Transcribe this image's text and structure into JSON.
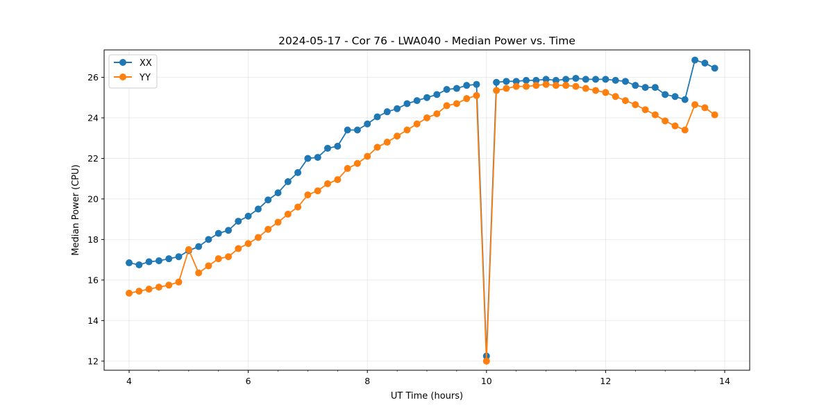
{
  "chart_data": {
    "type": "line",
    "title": "2024-05-17 - Cor 76 - LWA040 - Median Power vs. Time",
    "xlabel": "UT Time (hours)",
    "ylabel": "Median Power (CPU)",
    "xlim": [
      3.58,
      14.42
    ],
    "ylim": [
      11.55,
      27.35
    ],
    "xticks": [
      4,
      6,
      8,
      10,
      12,
      14
    ],
    "yticks": [
      12,
      14,
      16,
      18,
      20,
      22,
      24,
      26
    ],
    "grid": true,
    "legend_position": "top-left",
    "x": [
      4.0,
      4.167,
      4.333,
      4.5,
      4.667,
      4.833,
      5.0,
      5.167,
      5.333,
      5.5,
      5.667,
      5.833,
      6.0,
      6.167,
      6.333,
      6.5,
      6.667,
      6.833,
      7.0,
      7.167,
      7.333,
      7.5,
      7.667,
      7.833,
      8.0,
      8.167,
      8.333,
      8.5,
      8.667,
      8.833,
      9.0,
      9.167,
      9.333,
      9.5,
      9.667,
      9.833,
      10.0,
      10.167,
      10.333,
      10.5,
      10.667,
      10.833,
      11.0,
      11.167,
      11.333,
      11.5,
      11.667,
      11.833,
      12.0,
      12.167,
      12.333,
      12.5,
      12.667,
      12.833,
      13.0,
      13.167,
      13.333,
      13.5,
      13.667,
      13.833
    ],
    "series": [
      {
        "name": "XX",
        "color": "#1f77b4",
        "values": [
          16.85,
          16.75,
          16.9,
          16.95,
          17.05,
          17.15,
          17.45,
          17.65,
          18.0,
          18.3,
          18.45,
          18.9,
          19.15,
          19.5,
          19.95,
          20.3,
          20.85,
          21.3,
          22.0,
          22.05,
          22.5,
          22.6,
          23.4,
          23.4,
          23.7,
          24.05,
          24.3,
          24.45,
          24.7,
          24.85,
          25.0,
          25.15,
          25.4,
          25.45,
          25.6,
          25.65,
          12.25,
          25.75,
          25.8,
          25.8,
          25.85,
          25.85,
          25.9,
          25.85,
          25.9,
          25.95,
          25.9,
          25.9,
          25.9,
          25.85,
          25.8,
          25.6,
          25.5,
          25.5,
          25.15,
          25.05,
          24.9,
          26.85,
          26.7,
          26.45
        ]
      },
      {
        "name": "YY",
        "color": "#ff7f0e",
        "values": [
          15.35,
          15.45,
          15.55,
          15.65,
          15.75,
          15.9,
          17.5,
          16.35,
          16.7,
          17.05,
          17.15,
          17.55,
          17.8,
          18.1,
          18.5,
          18.85,
          19.25,
          19.6,
          20.2,
          20.4,
          20.75,
          20.95,
          21.5,
          21.75,
          22.1,
          22.55,
          22.8,
          23.1,
          23.4,
          23.7,
          24.0,
          24.2,
          24.6,
          24.7,
          24.95,
          25.1,
          12.0,
          25.35,
          25.45,
          25.55,
          25.55,
          25.6,
          25.65,
          25.6,
          25.6,
          25.55,
          25.45,
          25.35,
          25.25,
          25.05,
          24.85,
          24.65,
          24.4,
          24.15,
          23.85,
          23.6,
          23.4,
          24.65,
          24.5,
          24.15
        ]
      }
    ]
  }
}
